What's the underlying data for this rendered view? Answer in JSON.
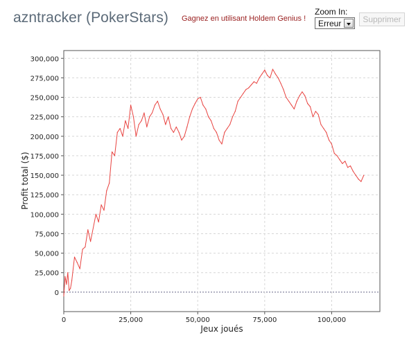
{
  "header": {
    "title": "azntracker (PokerStars)",
    "promo_link": "Gagnez en utilisant Holdem Genius !",
    "zoom_label": "Zoom In:",
    "zoom_select_value": "Erreur",
    "delete_button": "Supprimer"
  },
  "colors": {
    "series": "#e8423f",
    "grid": "#d6d6d6",
    "axis": "#555555",
    "title": "#5b6a78",
    "promo": "#9a2020"
  },
  "chart_data": {
    "type": "line",
    "xlabel": "Jeux joués",
    "ylabel": "Profit total ($)",
    "xlim": [
      0,
      118000
    ],
    "ylim": [
      -25000,
      310000
    ],
    "x_ticks": [
      0,
      25000,
      50000,
      75000,
      100000
    ],
    "x_tick_labels": [
      "0",
      "25,000",
      "50,000",
      "75,000",
      "100,000"
    ],
    "y_ticks": [
      0,
      25000,
      50000,
      75000,
      100000,
      125000,
      150000,
      175000,
      200000,
      225000,
      250000,
      275000,
      300000
    ],
    "y_tick_labels": [
      "0",
      "25,000",
      "50,000",
      "75,000",
      "100,000",
      "125,000",
      "150,000",
      "175,000",
      "200,000",
      "225,000",
      "250,000",
      "275,000",
      "300,000"
    ],
    "grid": true,
    "zero_line": true,
    "series": [
      {
        "values": [
          [
            0,
            -5000
          ],
          [
            500,
            20000
          ],
          [
            1000,
            10000
          ],
          [
            1500,
            25000
          ],
          [
            2000,
            2000
          ],
          [
            2500,
            5000
          ],
          [
            3000,
            15000
          ],
          [
            4000,
            45000
          ],
          [
            5000,
            38000
          ],
          [
            6000,
            30000
          ],
          [
            7000,
            55000
          ],
          [
            8000,
            58000
          ],
          [
            9000,
            80000
          ],
          [
            10000,
            65000
          ],
          [
            12000,
            100000
          ],
          [
            13000,
            90000
          ],
          [
            14000,
            112000
          ],
          [
            15000,
            105000
          ],
          [
            16000,
            130000
          ],
          [
            17000,
            140000
          ],
          [
            18000,
            180000
          ],
          [
            19000,
            175000
          ],
          [
            20000,
            205000
          ],
          [
            21000,
            210000
          ],
          [
            22000,
            200000
          ],
          [
            23000,
            220000
          ],
          [
            24000,
            210000
          ],
          [
            25000,
            240000
          ],
          [
            26000,
            225000
          ],
          [
            27000,
            200000
          ],
          [
            28000,
            215000
          ],
          [
            29000,
            220000
          ],
          [
            30000,
            230000
          ],
          [
            31000,
            212000
          ],
          [
            32000,
            225000
          ],
          [
            33000,
            230000
          ],
          [
            34000,
            240000
          ],
          [
            35000,
            245000
          ],
          [
            36000,
            235000
          ],
          [
            37000,
            228000
          ],
          [
            38000,
            215000
          ],
          [
            39000,
            225000
          ],
          [
            40000,
            210000
          ],
          [
            41000,
            205000
          ],
          [
            42000,
            212000
          ],
          [
            43000,
            205000
          ],
          [
            44000,
            195000
          ],
          [
            45000,
            200000
          ],
          [
            46000,
            212000
          ],
          [
            47000,
            225000
          ],
          [
            48000,
            235000
          ],
          [
            49000,
            242000
          ],
          [
            50000,
            248000
          ],
          [
            51000,
            250000
          ],
          [
            52000,
            240000
          ],
          [
            53000,
            235000
          ],
          [
            54000,
            225000
          ],
          [
            55000,
            220000
          ],
          [
            56000,
            210000
          ],
          [
            57000,
            205000
          ],
          [
            58000,
            195000
          ],
          [
            59000,
            190000
          ],
          [
            60000,
            205000
          ],
          [
            61000,
            210000
          ],
          [
            62000,
            215000
          ],
          [
            63000,
            225000
          ],
          [
            64000,
            232000
          ],
          [
            65000,
            245000
          ],
          [
            66000,
            250000
          ],
          [
            67000,
            255000
          ],
          [
            68000,
            260000
          ],
          [
            69000,
            262000
          ],
          [
            70000,
            266000
          ],
          [
            71000,
            270000
          ],
          [
            72000,
            268000
          ],
          [
            73000,
            275000
          ],
          [
            74000,
            280000
          ],
          [
            75000,
            285000
          ],
          [
            76000,
            278000
          ],
          [
            77000,
            275000
          ],
          [
            78000,
            286000
          ],
          [
            79000,
            280000
          ],
          [
            80000,
            275000
          ],
          [
            81000,
            268000
          ],
          [
            82000,
            260000
          ],
          [
            83000,
            250000
          ],
          [
            84000,
            245000
          ],
          [
            85000,
            240000
          ],
          [
            86000,
            235000
          ],
          [
            87000,
            245000
          ],
          [
            88000,
            252000
          ],
          [
            89000,
            257000
          ],
          [
            90000,
            252000
          ],
          [
            91000,
            242000
          ],
          [
            92000,
            238000
          ],
          [
            93000,
            225000
          ],
          [
            94000,
            232000
          ],
          [
            95000,
            228000
          ],
          [
            96000,
            215000
          ],
          [
            97000,
            210000
          ],
          [
            98000,
            205000
          ],
          [
            99000,
            195000
          ],
          [
            100000,
            190000
          ],
          [
            101000,
            178000
          ],
          [
            102000,
            175000
          ],
          [
            103000,
            170000
          ],
          [
            104000,
            165000
          ],
          [
            105000,
            168000
          ],
          [
            106000,
            160000
          ],
          [
            107000,
            162000
          ],
          [
            108000,
            155000
          ],
          [
            109000,
            150000
          ],
          [
            110000,
            145000
          ],
          [
            111000,
            142000
          ],
          [
            112000,
            150000
          ]
        ]
      }
    ]
  }
}
